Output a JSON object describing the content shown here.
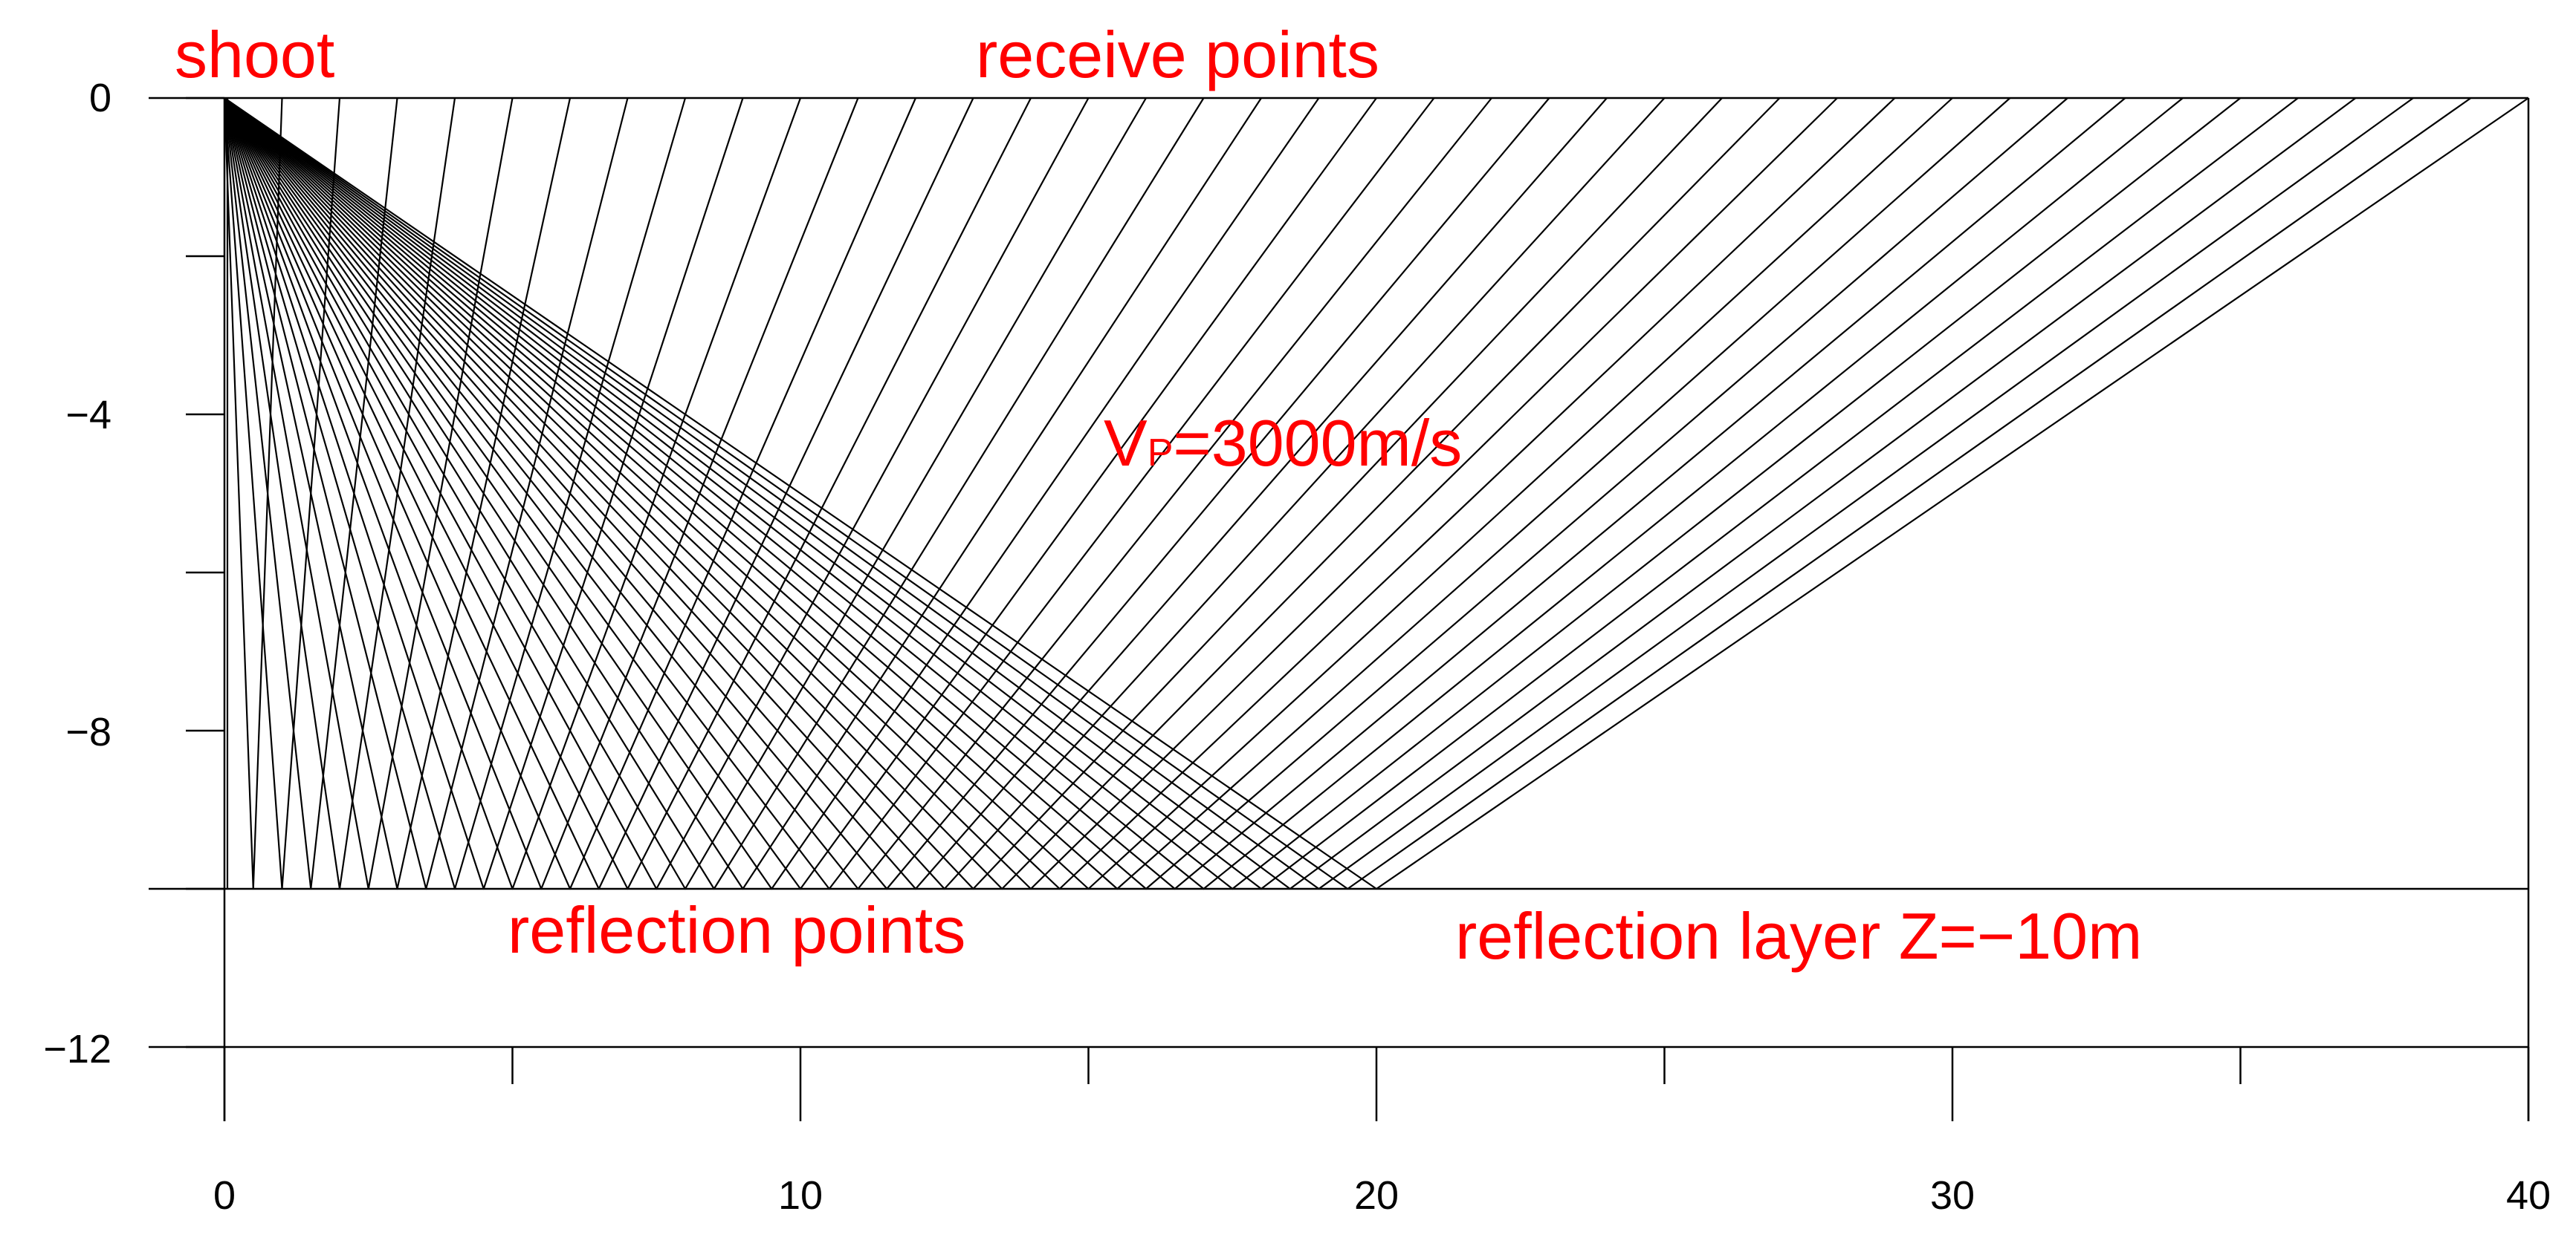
{
  "chart_data": {
    "type": "ray-diagram",
    "x_axis": {
      "range": [
        0,
        40
      ],
      "ticks": [
        0,
        10,
        20,
        30,
        40
      ],
      "minor_ticks": [
        5,
        15,
        25,
        35
      ]
    },
    "y_axis": {
      "range": [
        -12,
        0
      ],
      "ticks": [
        0,
        -4,
        -8,
        -12
      ],
      "tick_labels": [
        "0",
        "−4",
        "−8",
        "−12"
      ],
      "minor_ticks": [
        -2,
        -6,
        -10
      ]
    },
    "shot_point": {
      "x": 0,
      "z": 0
    },
    "reflection_layer_depth": -10,
    "ray_count": 41,
    "receiver_spacing": 1,
    "annotations": {
      "shoot": "shoot",
      "receive_points": "receive points",
      "velocity_main": "V",
      "velocity_sub": "P",
      "velocity_rest": "=3000m/s",
      "reflection_points": "reflection points",
      "reflection_layer": "reflection layer Z=−10m"
    },
    "colors": {
      "annotation": "#ff0000",
      "lines": "#000000"
    }
  }
}
